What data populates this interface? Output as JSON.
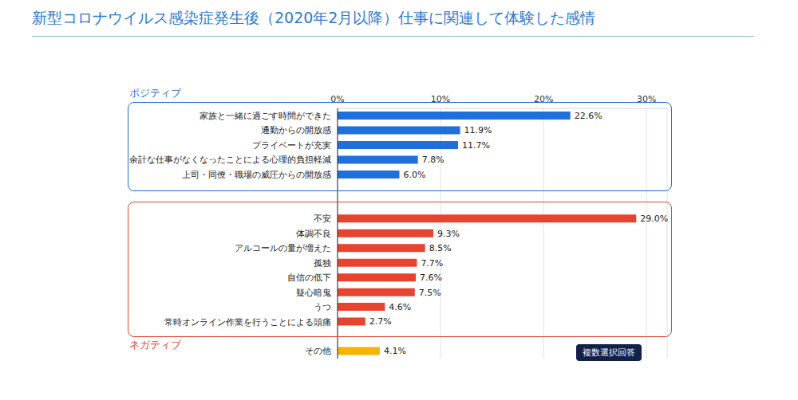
{
  "chart_data": {
    "type": "bar",
    "orientation": "horizontal",
    "title": "新型コロナウイルス感染症発生後（2020年2月以降）仕事に関連して体験した感情",
    "categories": [
      "家族と一緒に過ごす時間ができた",
      "通勤からの開放感",
      "プライベートが充実",
      "余計な仕事がなくなったことによる心理的負担軽減",
      "上司・同僚・職場の威圧からの開放感",
      null,
      null,
      "不安",
      "体調不良",
      "アルコールの量が増えた",
      "孤独",
      "自信の低下",
      "疑心暗鬼",
      "うつ",
      "常時オンライン作業を行うことによる頭痛",
      null,
      "その他"
    ],
    "values": [
      22.6,
      11.9,
      11.7,
      7.8,
      6.0,
      null,
      null,
      29.0,
      9.3,
      8.5,
      7.7,
      7.6,
      7.5,
      4.6,
      2.7,
      null,
      4.1
    ],
    "value_labels": [
      "22.6%",
      "11.9%",
      "11.7%",
      "7.8%",
      "6.0%",
      null,
      null,
      "29.0%",
      "9.3%",
      "8.5%",
      "7.7%",
      "7.6%",
      "7.5%",
      "4.6%",
      "2.7%",
      null,
      "4.1%"
    ],
    "colors": [
      "#1f6fdc",
      "#1f6fdc",
      "#1f6fdc",
      "#1f6fdc",
      "#1f6fdc",
      null,
      null,
      "#e8432f",
      "#e8432f",
      "#e8432f",
      "#e8432f",
      "#e8432f",
      "#e8432f",
      "#e8432f",
      "#e8432f",
      null,
      "#f5b400"
    ],
    "xlim": [
      0,
      32
    ],
    "xticks": [
      {
        "value": 0,
        "label": "0%"
      },
      {
        "value": 10,
        "label": "10%"
      },
      {
        "value": 20,
        "label": "20%"
      },
      {
        "value": 30,
        "label": "30%"
      }
    ],
    "grid": true,
    "data_labels": true,
    "annotations": [
      "ポジティブ",
      "ネガティブ",
      "複数選択回答"
    ]
  }
}
